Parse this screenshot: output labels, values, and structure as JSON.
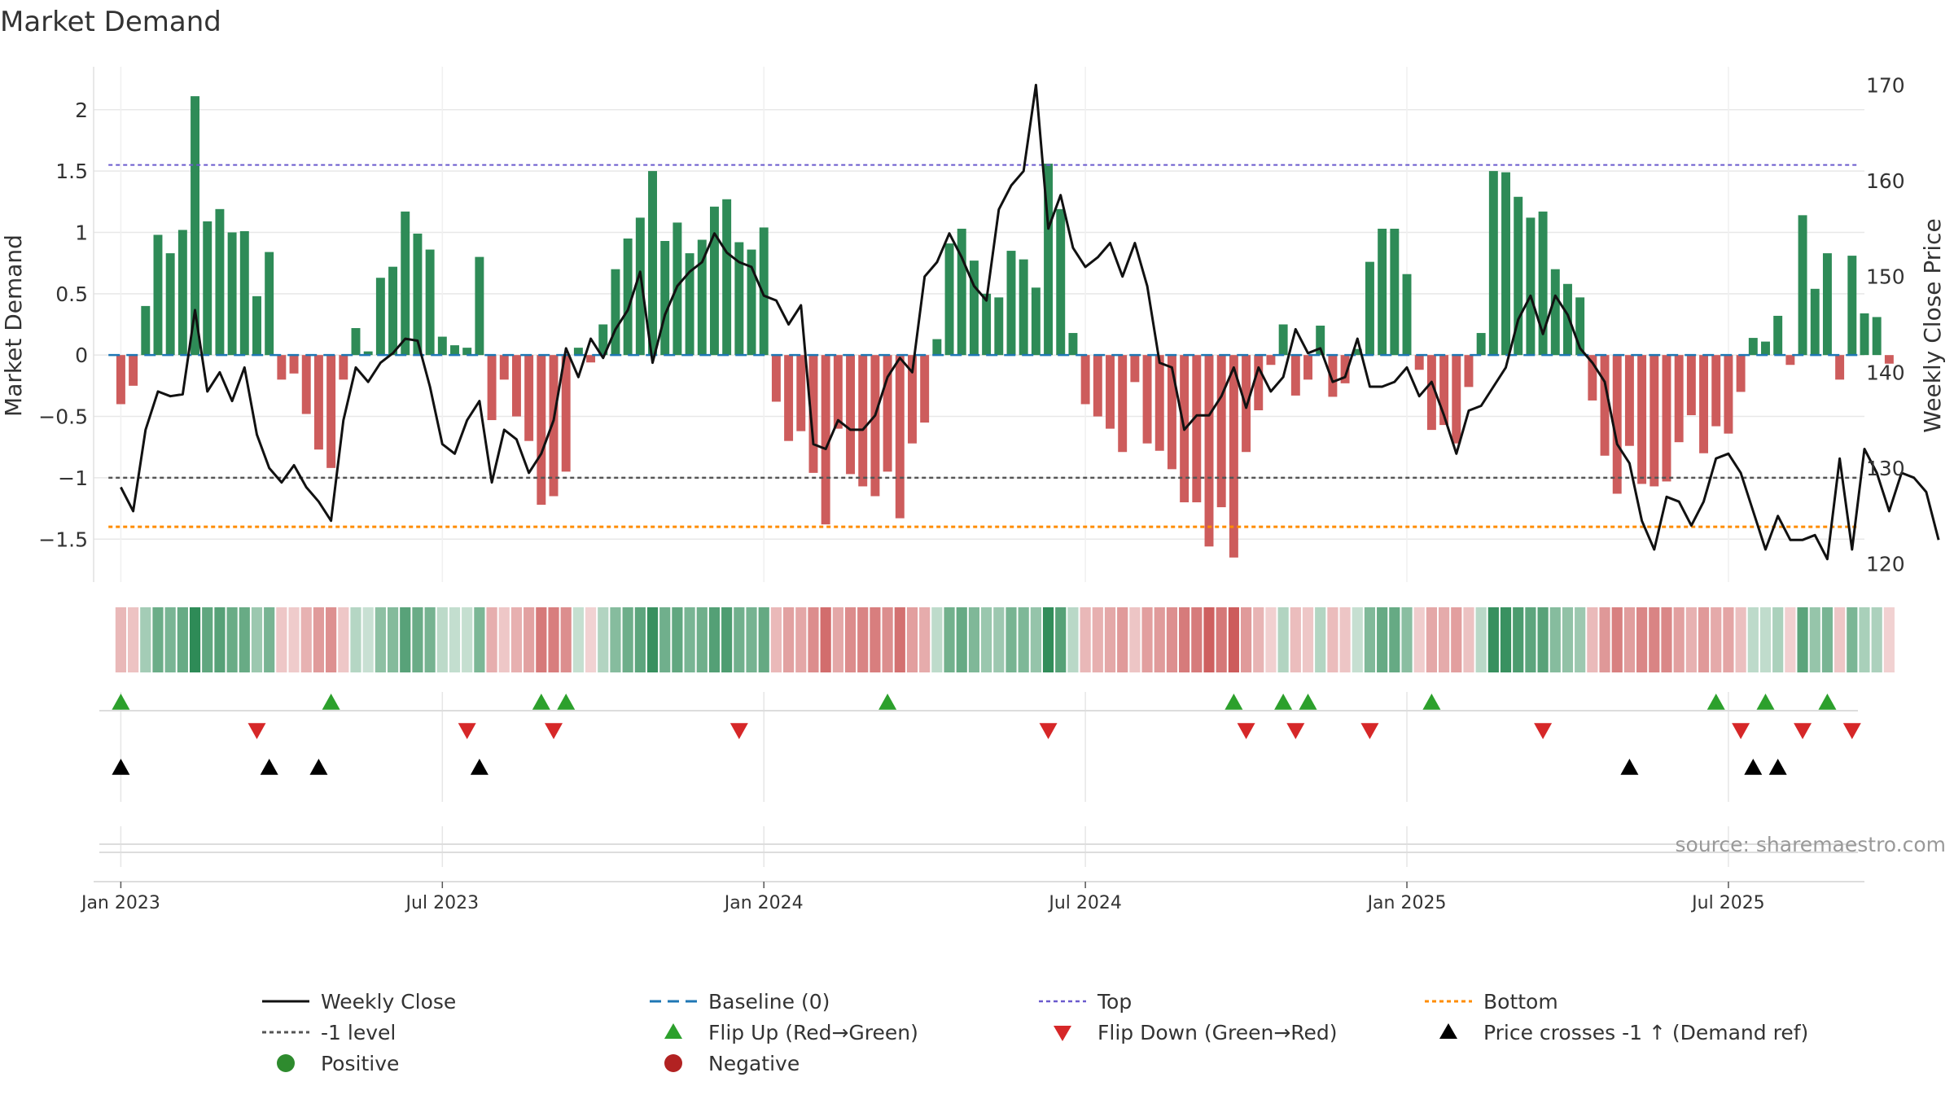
{
  "chart_data": {
    "type": "bar",
    "title": "Market Demand",
    "ylabel": "Market Demand",
    "y2label": "Weekly Close Price",
    "ylim": [
      -1.85,
      2.35
    ],
    "y2lim": [
      118.1,
      171.9
    ],
    "yticks": [
      2,
      1.5,
      1,
      0.5,
      0,
      -0.5,
      -1,
      -1.5
    ],
    "ytick_labels": [
      "2",
      "1.5",
      "1",
      "0.5",
      "0",
      "−0.5",
      "−1",
      "−1.5"
    ],
    "y2ticks": [
      170,
      160,
      150,
      140,
      130,
      120
    ],
    "y2tick_labels": [
      "170",
      "160",
      "150",
      "140",
      "130",
      "120"
    ],
    "xticks": [
      {
        "week": 0,
        "label": "Jan 2023"
      },
      {
        "week": 26,
        "label": "Jul 2023"
      },
      {
        "week": 52,
        "label": "Jan 2024"
      },
      {
        "week": 78,
        "label": "Jul 2024"
      },
      {
        "week": 104,
        "label": "Jan 2025"
      },
      {
        "week": 130,
        "label": "Jul 2025"
      }
    ],
    "week_range": [
      -2.2,
      141
    ],
    "demand": [
      -0.4,
      -0.25,
      0.4,
      0.98,
      0.83,
      1.02,
      2.11,
      1.09,
      1.19,
      1.0,
      1.01,
      0.48,
      0.84,
      -0.2,
      -0.15,
      -0.48,
      -0.77,
      -0.92,
      -0.2,
      0.22,
      0.03,
      0.63,
      0.72,
      1.17,
      0.99,
      0.86,
      0.15,
      0.08,
      0.06,
      0.8,
      -0.53,
      -0.2,
      -0.5,
      -0.7,
      -1.22,
      -1.15,
      -0.95,
      0.06,
      -0.06,
      0.25,
      0.7,
      0.95,
      1.12,
      1.5,
      0.93,
      1.08,
      0.83,
      0.94,
      1.21,
      1.27,
      0.92,
      0.86,
      1.04,
      -0.38,
      -0.7,
      -0.62,
      -0.96,
      -1.38,
      -0.6,
      -0.97,
      -1.07,
      -1.15,
      -0.95,
      -1.33,
      -0.72,
      -0.55,
      0.13,
      0.91,
      1.03,
      0.77,
      0.5,
      0.47,
      0.85,
      0.78,
      0.55,
      1.56,
      1.19,
      0.18,
      -0.4,
      -0.5,
      -0.6,
      -0.79,
      -0.22,
      -0.72,
      -0.78,
      -0.93,
      -1.2,
      -1.2,
      -1.56,
      -1.24,
      -1.65,
      -0.79,
      -0.45,
      -0.08,
      0.25,
      -0.33,
      -0.2,
      0.24,
      -0.34,
      -0.23,
      0.05,
      0.76,
      1.03,
      1.03,
      0.66,
      -0.12,
      -0.61,
      -0.57,
      -0.72,
      -0.26,
      0.18,
      1.5,
      1.49,
      1.29,
      1.12,
      1.17,
      0.7,
      0.58,
      0.47,
      -0.37,
      -0.82,
      -1.13,
      -0.74,
      -1.05,
      -1.07,
      -1.03,
      -0.71,
      -0.49,
      -0.8,
      -0.58,
      -0.64,
      -0.3,
      0.14,
      0.11,
      0.32,
      -0.08,
      1.14,
      0.54,
      0.83,
      -0.2,
      0.81,
      0.34,
      0.31,
      -0.07
    ],
    "close": [
      128,
      125.5,
      134,
      138,
      137.5,
      137.7,
      146.5,
      138,
      140,
      137,
      140.5,
      133.5,
      130,
      128.5,
      130.3,
      128,
      126.5,
      124.5,
      135,
      140.5,
      139,
      141,
      142,
      143.5,
      143.3,
      138.5,
      132.5,
      131.5,
      135,
      137,
      128.5,
      134,
      133,
      129.5,
      131.5,
      135,
      142.5,
      139.5,
      143.5,
      141.5,
      144.5,
      146.5,
      150.5,
      141,
      146,
      149,
      150.5,
      151.5,
      154.5,
      152.5,
      151.5,
      151,
      148,
      147.5,
      145,
      147,
      132.5,
      132,
      135,
      134,
      134,
      135.5,
      139.5,
      141.5,
      140,
      150,
      151.5,
      154.5,
      152,
      149,
      147.5,
      157,
      159.5,
      161,
      170,
      155,
      158.5,
      153,
      151,
      152,
      153.5,
      150,
      153.5,
      149,
      141,
      140.5,
      134,
      135.5,
      135.5,
      137.5,
      140.5,
      136.3,
      140.5,
      138,
      139.5,
      144.5,
      142,
      142.5,
      139,
      139.5,
      143.5,
      138.5,
      138.5,
      139,
      140.5,
      137.5,
      139,
      135.5,
      131.5,
      136,
      136.5,
      138.5,
      140.5,
      145.5,
      148,
      144,
      148,
      146,
      142.5,
      141,
      139,
      132.5,
      130.5,
      124.5,
      121.5,
      127,
      126.5,
      124,
      126.5,
      131,
      131.5,
      129.5,
      125.5,
      121.5,
      125,
      122.5,
      122.5,
      123,
      120.5,
      131,
      121.5,
      132,
      129.5,
      125.5,
      129.5,
      129,
      127.5,
      122.5
    ],
    "baseline": 0,
    "top": 1.55,
    "bottom": -1.4,
    "minus_one_level": -1,
    "flip_up_weeks": [
      0,
      17,
      34,
      36,
      62,
      90,
      94,
      96,
      106,
      129,
      133,
      138
    ],
    "flip_down_weeks": [
      11,
      28,
      35,
      50,
      75,
      91,
      95,
      101,
      115,
      131,
      136,
      140
    ],
    "price_cross_weeks": [
      0,
      12,
      16,
      29,
      122,
      132,
      134
    ]
  },
  "source": "source: sharemaestro.com",
  "legend": [
    {
      "key": "weekly-close",
      "label": "Weekly Close"
    },
    {
      "key": "baseline",
      "label": "Baseline (0)"
    },
    {
      "key": "top",
      "label": "Top"
    },
    {
      "key": "bottom",
      "label": "Bottom"
    },
    {
      "key": "minus-one",
      "label": "-1 level"
    },
    {
      "key": "flip-up",
      "label": "Flip Up (Red→Green)"
    },
    {
      "key": "flip-down",
      "label": "Flip Down (Green→Red)"
    },
    {
      "key": "price-cross",
      "label": "Price crosses -1 ↑ (Demand ref)"
    },
    {
      "key": "positive",
      "label": "Positive"
    },
    {
      "key": "negative",
      "label": "Negative"
    }
  ],
  "colors": {
    "positive": "#2e8b57",
    "negative": "#cd5c5c",
    "close": "#111111",
    "baseline": "#1f77b4",
    "top": "#6a5acd",
    "bottom": "#ff8c00",
    "minus_one": "#555555",
    "flip_up": "#2ca02c",
    "flip_down": "#d62728",
    "price_cross": "#000000",
    "positive_dot": "#2e8b2e",
    "negative_dot": "#b22222",
    "grid": "#e8e8e8"
  }
}
